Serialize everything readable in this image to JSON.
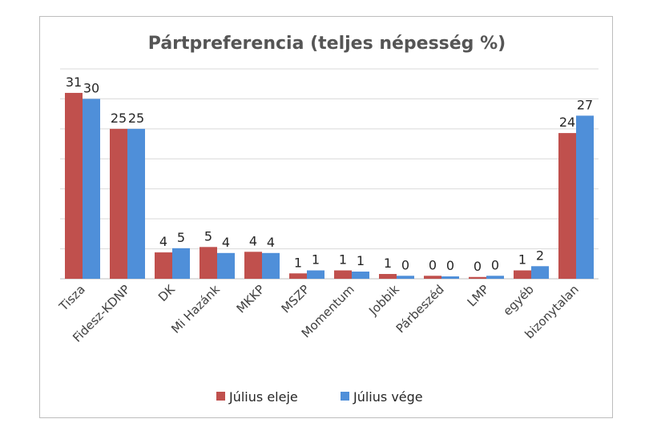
{
  "chart_data": {
    "type": "bar",
    "title": "Pártpreferencia (teljes népesség %)",
    "xlabel": "",
    "ylabel": "",
    "ylim": [
      0,
      35
    ],
    "grid": true,
    "legend_position": "bottom",
    "categories": [
      "Tisza",
      "Fidesz-KDNP",
      "DK",
      "Mi Hazánk",
      "MKKP",
      "MSZP",
      "Momentum",
      "Jobbik",
      "Párbeszéd",
      "LMP",
      "egyéb",
      "bizonytalan"
    ],
    "series": [
      {
        "name": "Július eleje",
        "color": "#c0504d",
        "values": [
          31,
          25,
          4,
          5,
          4,
          1,
          1,
          1,
          0,
          0,
          1,
          24
        ],
        "bar_values": [
          31,
          25,
          4.4,
          5.3,
          4.5,
          0.9,
          1.4,
          0.8,
          0.5,
          0.3,
          1.4,
          24.3
        ]
      },
      {
        "name": "Július vége",
        "color": "#4f8fd9",
        "values": [
          30,
          25,
          5,
          4,
          4,
          1,
          1,
          0,
          0,
          0,
          2,
          27
        ],
        "bar_values": [
          30,
          25,
          5.1,
          4.3,
          4.3,
          1.4,
          1.2,
          0.5,
          0.4,
          0.5,
          2.1,
          27.2
        ]
      }
    ]
  }
}
